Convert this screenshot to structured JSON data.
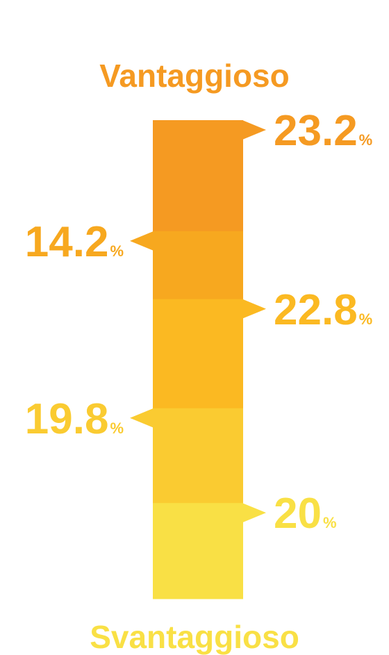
{
  "chart_data": {
    "type": "bar",
    "stacked": true,
    "orientation": "vertical",
    "title_top": "Vantaggioso",
    "title_bottom": "Svantaggioso",
    "percent_symbol": "%",
    "segments": [
      {
        "label": "23.2",
        "value": 23.2,
        "side": "right",
        "color": "#F59A22"
      },
      {
        "label": "14.2",
        "value": 14.2,
        "side": "left",
        "color": "#F7A81F"
      },
      {
        "label": "22.8",
        "value": 22.8,
        "side": "right",
        "color": "#FBB922"
      },
      {
        "label": "19.8",
        "value": 19.8,
        "side": "left",
        "color": "#FACB31"
      },
      {
        "label": "20",
        "value": 20.0,
        "side": "right",
        "color": "#F9E045"
      }
    ],
    "colors": {
      "title_top": "#F59A22",
      "title_bottom": "#F9E045"
    }
  }
}
